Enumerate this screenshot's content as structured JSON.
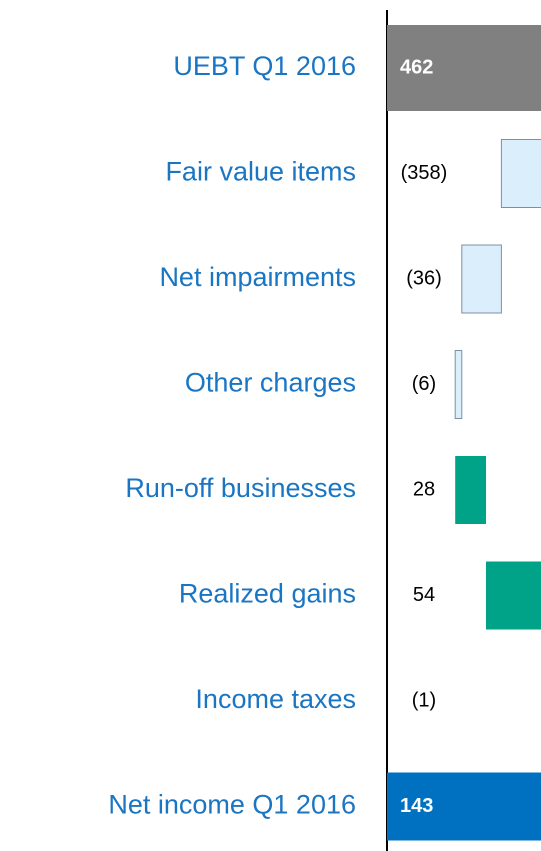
{
  "chart_data": {
    "type": "waterfall",
    "categories": [
      "UEBT Q1 2016",
      "Fair value items",
      "Net impairments",
      "Other charges",
      "Run-off businesses",
      "Realized gains",
      "Income taxes",
      "Net income Q1 2016"
    ],
    "values": [
      462,
      -358,
      -36,
      -6,
      28,
      54,
      -1,
      143
    ],
    "value_labels": [
      "462",
      "(358)",
      "(36)",
      "(6)",
      "28",
      "54",
      "(1)",
      "143"
    ],
    "xlim": [
      0,
      140
    ],
    "total_color": "#808080",
    "final_color": "#0070c0",
    "increase_color": "#00a388",
    "decrease_color": "#dbeefc"
  }
}
